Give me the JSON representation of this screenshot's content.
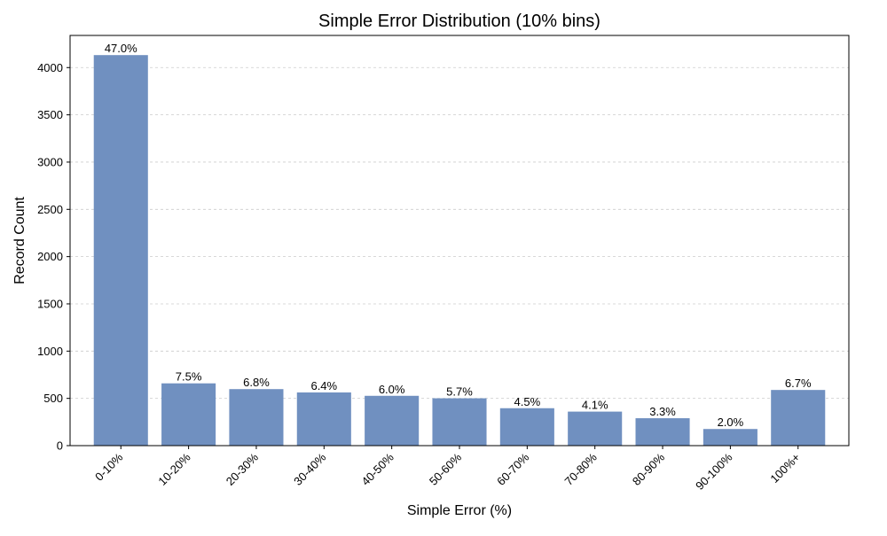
{
  "chart_data": {
    "type": "bar",
    "title": "Simple Error Distribution (10% bins)",
    "xlabel": "Simple Error (%)",
    "ylabel": "Record Count",
    "categories": [
      "0-10%",
      "10-20%",
      "20-30%",
      "30-40%",
      "40-50%",
      "50-60%",
      "60-70%",
      "70-80%",
      "80-90%",
      "90-100%",
      "100%+"
    ],
    "values": [
      4132,
      659,
      598,
      563,
      527,
      501,
      396,
      360,
      290,
      176,
      589
    ],
    "data_labels": [
      "47.0%",
      "7.5%",
      "6.8%",
      "6.4%",
      "6.0%",
      "5.7%",
      "4.5%",
      "4.1%",
      "3.3%",
      "2.0%",
      "6.7%"
    ],
    "ylim": [
      0,
      4340
    ],
    "yticks": [
      0,
      500,
      1000,
      1500,
      2000,
      2500,
      3000,
      3500,
      4000
    ],
    "grid": true,
    "bar_color": "#7090c0"
  }
}
